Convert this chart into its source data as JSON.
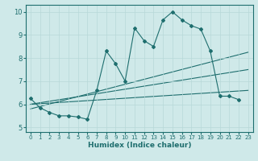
{
  "title": "",
  "xlabel": "Humidex (Indice chaleur)",
  "xlim": [
    -0.5,
    23.5
  ],
  "ylim": [
    4.8,
    10.3
  ],
  "xticks": [
    0,
    1,
    2,
    3,
    4,
    5,
    6,
    7,
    8,
    9,
    10,
    11,
    12,
    13,
    14,
    15,
    16,
    17,
    18,
    19,
    20,
    21,
    22,
    23
  ],
  "yticks": [
    5,
    6,
    7,
    8,
    9,
    10
  ],
  "bg_color": "#cfe9e9",
  "grid_color": "#b8d8d8",
  "line_color": "#1e6e6e",
  "line1_x": [
    0,
    1,
    2,
    3,
    4,
    5,
    6,
    7,
    8,
    9,
    10,
    11,
    12,
    13,
    14,
    15,
    16,
    17,
    18,
    19,
    20,
    21,
    22
  ],
  "line1_y": [
    6.25,
    5.85,
    5.65,
    5.5,
    5.5,
    5.45,
    5.35,
    6.6,
    8.3,
    7.75,
    7.0,
    9.3,
    8.75,
    8.5,
    9.65,
    10.0,
    9.65,
    9.4,
    9.25,
    8.3,
    6.35,
    6.35,
    6.2
  ],
  "line2_x": [
    0,
    23
  ],
  "line2_y": [
    6.0,
    6.6
  ],
  "line3_x": [
    0,
    23
  ],
  "line3_y": [
    6.0,
    7.5
  ],
  "line4_x": [
    0,
    23
  ],
  "line4_y": [
    5.8,
    8.25
  ],
  "marker": "D",
  "markersize": 2.0,
  "linewidth": 0.8,
  "tick_labelsize": 5.5,
  "xlabel_fontsize": 6.5
}
